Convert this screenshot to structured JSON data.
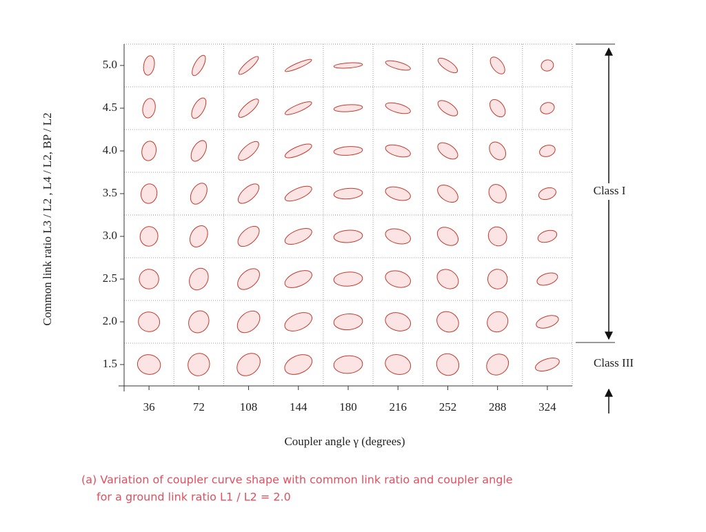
{
  "figure": {
    "y_label": "Common link ratio L3 / L2 , L4 / L2, BP / L2",
    "x_label": "Coupler angle γ (degrees)",
    "yticks": [
      "5.0",
      "4.5",
      "4.0",
      "3.5",
      "3.0",
      "2.5",
      "2.0",
      "1.5"
    ],
    "xticks": [
      "36",
      "72",
      "108",
      "144",
      "180",
      "216",
      "252",
      "288",
      "324"
    ],
    "classes": [
      "Class I",
      "Class III"
    ],
    "caption": [
      "(a)  Variation of coupler curve shape with common link ratio and coupler angle",
      "for a ground link ratio L1 / L2 = 2.0"
    ]
  }
}
